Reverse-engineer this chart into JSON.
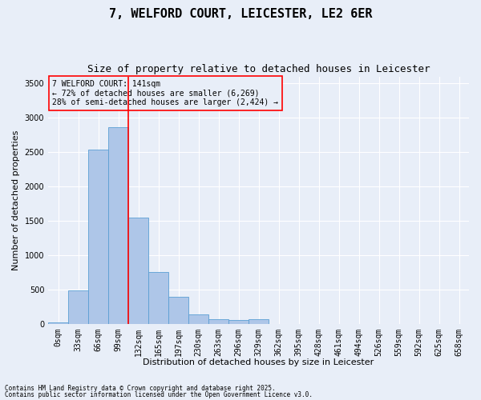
{
  "title1": "7, WELFORD COURT, LEICESTER, LE2 6ER",
  "title2": "Size of property relative to detached houses in Leicester",
  "xlabel": "Distribution of detached houses by size in Leicester",
  "ylabel": "Number of detached properties",
  "bar_labels": [
    "0sqm",
    "33sqm",
    "66sqm",
    "99sqm",
    "132sqm",
    "165sqm",
    "197sqm",
    "230sqm",
    "263sqm",
    "296sqm",
    "329sqm",
    "362sqm",
    "395sqm",
    "428sqm",
    "461sqm",
    "494sqm",
    "526sqm",
    "559sqm",
    "592sqm",
    "625sqm",
    "658sqm"
  ],
  "bar_values": [
    15,
    480,
    2530,
    2860,
    1540,
    750,
    390,
    140,
    65,
    55,
    60,
    0,
    0,
    0,
    0,
    0,
    0,
    0,
    0,
    0,
    0
  ],
  "bar_color": "#aec6e8",
  "bar_edge_color": "#5a9fd4",
  "background_color": "#e8eef8",
  "grid_color": "#ffffff",
  "vline_x": 4,
  "vline_color": "red",
  "annotation_title": "7 WELFORD COURT: 141sqm",
  "annotation_line1": "← 72% of detached houses are smaller (6,269)",
  "annotation_line2": "28% of semi-detached houses are larger (2,424) →",
  "annotation_box_color": "red",
  "ylim": [
    0,
    3600
  ],
  "yticks": [
    0,
    500,
    1000,
    1500,
    2000,
    2500,
    3000,
    3500
  ],
  "footnote1": "Contains HM Land Registry data © Crown copyright and database right 2025.",
  "footnote2": "Contains public sector information licensed under the Open Government Licence v3.0.",
  "title_fontsize": 11,
  "subtitle_fontsize": 9,
  "label_fontsize": 8,
  "tick_fontsize": 7,
  "annotation_fontsize": 7,
  "footnote_fontsize": 5.5
}
